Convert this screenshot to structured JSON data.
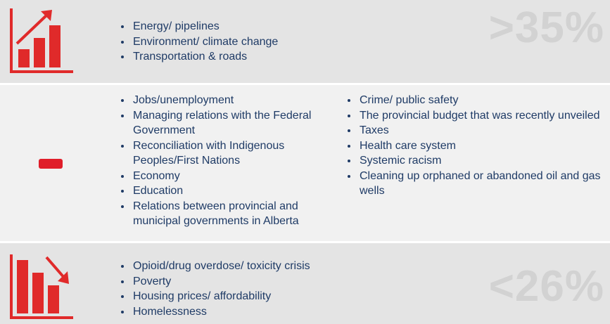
{
  "rows": [
    {
      "direction": "up",
      "items": [
        "Energy/ pipelines",
        "Environment/ climate change",
        "Transportation & roads"
      ],
      "badge": ">35%"
    },
    {
      "direction": "flat",
      "columns": [
        [
          "Jobs/unemployment",
          "Managing relations with the Federal Government",
          "Reconciliation with Indigenous Peoples/First Nations",
          "Economy",
          "Education",
          "Relations between provincial and municipal governments in Alberta"
        ],
        [
          "Crime/ public safety",
          "The provincial budget that was recently unveiled",
          "Taxes",
          "Health care system",
          "Systemic racism",
          "Cleaning up orphaned or abandoned oil and gas wells"
        ]
      ]
    },
    {
      "direction": "down",
      "items": [
        "Opioid/drug overdose/ toxicity crisis",
        "Poverty",
        "Housing prices/ affordability",
        "Homelessness"
      ],
      "badge": "<26%"
    }
  ]
}
